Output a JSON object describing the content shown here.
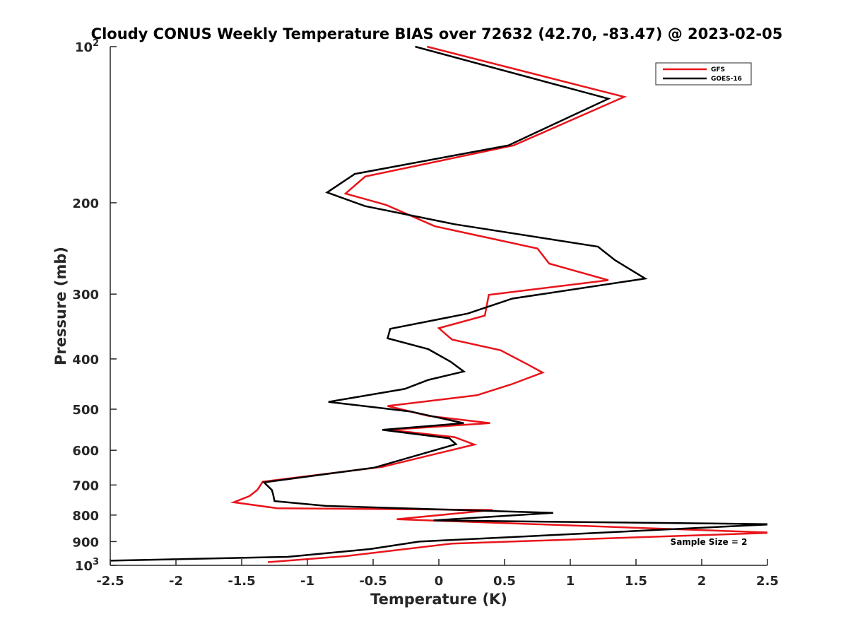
{
  "chart_data": {
    "type": "line",
    "title": "Cloudy CONUS Weekly Temperature BIAS over 72632 (42.70, -83.47) @ 2023-02-05",
    "xlabel": "Temperature (K)",
    "ylabel": "Pressure (mb)",
    "xlim": [
      -2.5,
      2.5
    ],
    "ylim": [
      100,
      1000
    ],
    "y_scale": "log",
    "y_reversed": true,
    "x_ticks": [
      "-2.5",
      "-2",
      "-1.5",
      "-1",
      "-0.5",
      "0",
      "0.5",
      "1",
      "1.5",
      "2",
      "2.5"
    ],
    "x_tick_values": [
      -2.5,
      -2,
      -1.5,
      -1,
      -0.5,
      0,
      0.5,
      1,
      1.5,
      2,
      2.5
    ],
    "y_ticks": [
      {
        "value": 100,
        "base": "10",
        "exp": "2"
      },
      {
        "value": 200,
        "base": "200",
        "exp": ""
      },
      {
        "value": 300,
        "base": "300",
        "exp": ""
      },
      {
        "value": 400,
        "base": "400",
        "exp": ""
      },
      {
        "value": 500,
        "base": "500",
        "exp": ""
      },
      {
        "value": 600,
        "base": "600",
        "exp": ""
      },
      {
        "value": 700,
        "base": "700",
        "exp": ""
      },
      {
        "value": 800,
        "base": "800",
        "exp": ""
      },
      {
        "value": 900,
        "base": "900",
        "exp": ""
      },
      {
        "value": 1000,
        "base": "10",
        "exp": "3"
      }
    ],
    "legend_position": "top-right",
    "annotation": "Sample Size = 2",
    "series": [
      {
        "name": "GFS",
        "color": "#e8141a",
        "points": [
          [
            -0.09,
            100
          ],
          [
            1.41,
            125
          ],
          [
            0.57,
            155
          ],
          [
            -0.56,
            178
          ],
          [
            -0.71,
            192
          ],
          [
            -0.4,
            202
          ],
          [
            -0.03,
            222
          ],
          [
            0.75,
            245
          ],
          [
            0.84,
            262
          ],
          [
            1.29,
            282
          ],
          [
            0.38,
            301
          ],
          [
            0.35,
            330
          ],
          [
            0.0,
            349
          ],
          [
            0.1,
            367
          ],
          [
            0.47,
            385
          ],
          [
            0.66,
            408
          ],
          [
            0.79,
            425
          ],
          [
            0.55,
            448
          ],
          [
            0.29,
            470
          ],
          [
            -0.39,
            493
          ],
          [
            -0.08,
            515
          ],
          [
            0.39,
            532
          ],
          [
            -0.38,
            548
          ],
          [
            0.12,
            566
          ],
          [
            0.27,
            585
          ],
          [
            -0.43,
            646
          ],
          [
            -1.34,
            690
          ],
          [
            -1.38,
            715
          ],
          [
            -1.44,
            735
          ],
          [
            -1.56,
            756
          ],
          [
            -1.23,
            776
          ],
          [
            0.41,
            782
          ],
          [
            -0.32,
            815
          ],
          [
            2.55,
            865
          ],
          [
            0.1,
            908
          ],
          [
            -0.71,
            960
          ],
          [
            -1.3,
            986
          ]
        ]
      },
      {
        "name": "GOES-16",
        "color": "#000000",
        "points": [
          [
            -0.18,
            100
          ],
          [
            1.29,
            126
          ],
          [
            0.53,
            155
          ],
          [
            -0.64,
            176
          ],
          [
            -0.85,
            191
          ],
          [
            -0.56,
            203
          ],
          [
            0.12,
            220
          ],
          [
            1.21,
            243
          ],
          [
            1.34,
            258
          ],
          [
            1.57,
            280
          ],
          [
            0.56,
            306
          ],
          [
            0.22,
            327
          ],
          [
            -0.37,
            350
          ],
          [
            -0.39,
            365
          ],
          [
            -0.08,
            383
          ],
          [
            0.09,
            405
          ],
          [
            0.19,
            423
          ],
          [
            -0.08,
            439
          ],
          [
            -0.26,
            457
          ],
          [
            -0.84,
            484
          ],
          [
            -0.22,
            505
          ],
          [
            0.19,
            532
          ],
          [
            -0.43,
            548
          ],
          [
            0.08,
            569
          ],
          [
            0.13,
            584
          ],
          [
            -0.49,
            648
          ],
          [
            -1.33,
            692
          ],
          [
            -1.27,
            716
          ],
          [
            -1.26,
            731
          ],
          [
            -1.25,
            752
          ],
          [
            -0.86,
            768
          ],
          [
            0.87,
            792
          ],
          [
            -0.04,
            819
          ],
          [
            2.55,
            833
          ],
          [
            -0.15,
            900
          ],
          [
            -0.52,
            930
          ],
          [
            -1.15,
            963
          ],
          [
            -2.55,
            980
          ]
        ]
      }
    ]
  }
}
